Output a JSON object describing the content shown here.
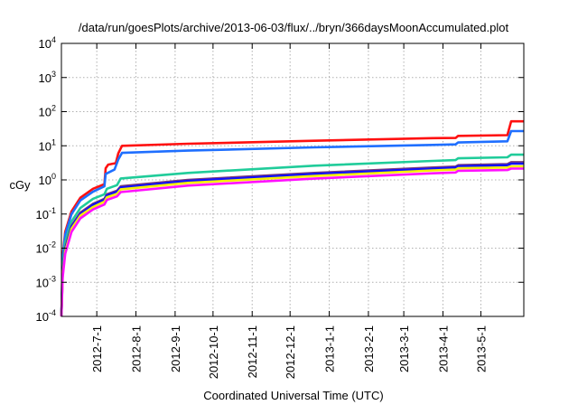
{
  "chart_data": {
    "type": "line",
    "title": "/data/run/goesPlots/archive/2013-06-03/flux/../bryn/366daysMoonAccumulated.plot",
    "xlabel": "Coordinated Universal Time (UTC)",
    "ylabel": "cGy",
    "yscale": "log",
    "ylim": [
      0.0001,
      10000
    ],
    "y_ticks": [
      {
        "base": "10",
        "exp": "-4",
        "value": 0.0001
      },
      {
        "base": "10",
        "exp": "-3",
        "value": 0.001
      },
      {
        "base": "10",
        "exp": "-2",
        "value": 0.01
      },
      {
        "base": "10",
        "exp": "-1",
        "value": 0.1
      },
      {
        "base": "10",
        "exp": "0",
        "value": 1
      },
      {
        "base": "10",
        "exp": "1",
        "value": 10
      },
      {
        "base": "10",
        "exp": "2",
        "value": 100
      },
      {
        "base": "10",
        "exp": "3",
        "value": 1000
      },
      {
        "base": "10",
        "exp": "4",
        "value": 10000
      }
    ],
    "x_unit": "days since 2012-06-03",
    "xlim": [
      0,
      366
    ],
    "x_ticks": [
      {
        "label": "2012-7-1",
        "day": 28
      },
      {
        "label": "2012-8-1",
        "day": 59
      },
      {
        "label": "2012-9-1",
        "day": 90
      },
      {
        "label": "2012-10-1",
        "day": 120
      },
      {
        "label": "2012-11-1",
        "day": 151
      },
      {
        "label": "2012-12-1",
        "day": 181
      },
      {
        "label": "2013-1-1",
        "day": 212
      },
      {
        "label": "2013-2-1",
        "day": 243
      },
      {
        "label": "2013-3-1",
        "day": 271
      },
      {
        "label": "2013-4-1",
        "day": 302
      },
      {
        "label": "2013-5-1",
        "day": 332
      }
    ],
    "grid": true,
    "series": [
      {
        "name": "red",
        "color": "#ff1010",
        "points": [
          [
            0,
            0.0001
          ],
          [
            1,
            0.006
          ],
          [
            3,
            0.03
          ],
          [
            8,
            0.12
          ],
          [
            15,
            0.3
          ],
          [
            25,
            0.55
          ],
          [
            34,
            0.75
          ],
          [
            35,
            2.2
          ],
          [
            37,
            2.8
          ],
          [
            41,
            3.0
          ],
          [
            43,
            3.1
          ],
          [
            45,
            6
          ],
          [
            48,
            10
          ],
          [
            100,
            11.5
          ],
          [
            200,
            14
          ],
          [
            294,
            16.7
          ],
          [
            312,
            17
          ],
          [
            314,
            19.5
          ],
          [
            353,
            20.5
          ],
          [
            356,
            52
          ],
          [
            366,
            52
          ]
        ]
      },
      {
        "name": "blue",
        "color": "#1f6fff",
        "points": [
          [
            0,
            0.0001
          ],
          [
            1,
            0.005
          ],
          [
            3,
            0.025
          ],
          [
            8,
            0.1
          ],
          [
            15,
            0.25
          ],
          [
            25,
            0.45
          ],
          [
            34,
            0.65
          ],
          [
            35,
            1.5
          ],
          [
            42,
            2.0
          ],
          [
            45,
            4
          ],
          [
            48,
            6.2
          ],
          [
            100,
            7.2
          ],
          [
            200,
            9
          ],
          [
            294,
            10.6
          ],
          [
            312,
            11
          ],
          [
            314,
            12.5
          ],
          [
            353,
            13.5
          ],
          [
            356,
            27
          ],
          [
            366,
            27
          ]
        ]
      },
      {
        "name": "green",
        "color": "#20cc9a",
        "points": [
          [
            0,
            0.0001
          ],
          [
            1,
            0.003
          ],
          [
            3,
            0.015
          ],
          [
            8,
            0.06
          ],
          [
            15,
            0.15
          ],
          [
            25,
            0.28
          ],
          [
            34,
            0.38
          ],
          [
            36,
            0.55
          ],
          [
            44,
            0.7
          ],
          [
            47,
            1.1
          ],
          [
            100,
            1.6
          ],
          [
            200,
            2.6
          ],
          [
            294,
            3.6
          ],
          [
            312,
            3.8
          ],
          [
            314,
            4.3
          ],
          [
            353,
            4.6
          ],
          [
            356,
            5.5
          ],
          [
            366,
            5.5
          ]
        ]
      },
      {
        "name": "purple",
        "color": "#7a3a78",
        "points": [
          [
            0,
            0.0001
          ],
          [
            1,
            0.002
          ],
          [
            3,
            0.01
          ],
          [
            8,
            0.045
          ],
          [
            15,
            0.11
          ],
          [
            25,
            0.2
          ],
          [
            34,
            0.28
          ],
          [
            36,
            0.38
          ],
          [
            44,
            0.48
          ],
          [
            47,
            0.65
          ],
          [
            100,
            1.0
          ],
          [
            200,
            1.6
          ],
          [
            294,
            2.3
          ],
          [
            312,
            2.45
          ],
          [
            314,
            2.7
          ],
          [
            353,
            2.9
          ],
          [
            356,
            3.3
          ],
          [
            366,
            3.3
          ]
        ]
      },
      {
        "name": "dark-blue",
        "color": "#1010ff",
        "points": [
          [
            0,
            0.0001
          ],
          [
            1,
            0.0019
          ],
          [
            3,
            0.0093
          ],
          [
            8,
            0.042
          ],
          [
            15,
            0.1
          ],
          [
            25,
            0.186
          ],
          [
            34,
            0.26
          ],
          [
            36,
            0.35
          ],
          [
            44,
            0.45
          ],
          [
            47,
            0.6
          ],
          [
            100,
            0.93
          ],
          [
            200,
            1.5
          ],
          [
            294,
            2.15
          ],
          [
            312,
            2.3
          ],
          [
            314,
            2.5
          ],
          [
            353,
            2.7
          ],
          [
            356,
            3.0
          ],
          [
            366,
            3.0
          ]
        ]
      },
      {
        "name": "yellow",
        "color": "#f5f000",
        "points": [
          [
            0,
            0.0001
          ],
          [
            1,
            0.0016
          ],
          [
            3,
            0.008
          ],
          [
            8,
            0.037
          ],
          [
            15,
            0.09
          ],
          [
            25,
            0.16
          ],
          [
            34,
            0.23
          ],
          [
            36,
            0.31
          ],
          [
            44,
            0.39
          ],
          [
            47,
            0.53
          ],
          [
            100,
            0.82
          ],
          [
            200,
            1.3
          ],
          [
            294,
            1.9
          ],
          [
            312,
            2.0
          ],
          [
            314,
            2.2
          ],
          [
            353,
            2.3
          ],
          [
            356,
            2.5
          ],
          [
            366,
            2.5
          ]
        ]
      },
      {
        "name": "magenta",
        "color": "#ff10ff",
        "points": [
          [
            0,
            0.0001
          ],
          [
            1,
            0.0014
          ],
          [
            3,
            0.0068
          ],
          [
            8,
            0.03
          ],
          [
            15,
            0.075
          ],
          [
            25,
            0.136
          ],
          [
            34,
            0.19
          ],
          [
            36,
            0.26
          ],
          [
            44,
            0.33
          ],
          [
            47,
            0.44
          ],
          [
            100,
            0.68
          ],
          [
            200,
            1.09
          ],
          [
            294,
            1.56
          ],
          [
            312,
            1.65
          ],
          [
            314,
            1.85
          ],
          [
            353,
            1.95
          ],
          [
            356,
            2.15
          ],
          [
            366,
            2.15
          ]
        ]
      }
    ]
  }
}
